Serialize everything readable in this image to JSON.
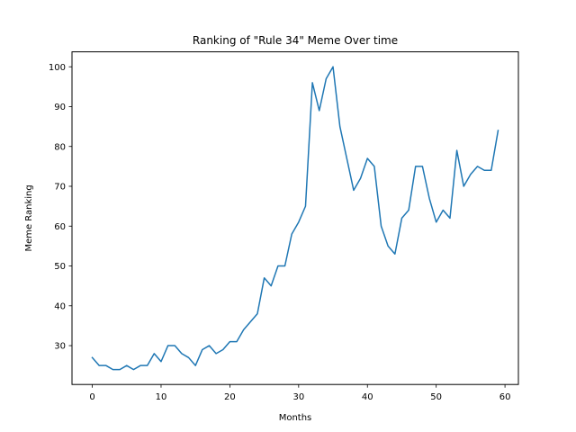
{
  "chart_data": {
    "type": "line",
    "title": "Ranking of \"Rule 34\" Meme Over time",
    "xlabel": "Months",
    "ylabel": "Meme Ranking",
    "xlim": [
      -2.95,
      61.95
    ],
    "ylim": [
      20.25,
      103.75
    ],
    "xticks": [
      0,
      10,
      20,
      30,
      40,
      50,
      60
    ],
    "yticks": [
      30,
      40,
      50,
      60,
      70,
      80,
      90,
      100
    ],
    "grid": false,
    "legend": "none",
    "line_color": "#1f77b4",
    "series": [
      {
        "x": [
          0,
          1,
          2,
          3,
          4,
          5,
          6,
          7,
          8,
          9,
          10,
          11,
          12,
          13,
          14,
          15,
          16,
          17,
          18,
          19,
          20,
          21,
          22,
          23,
          24,
          25,
          26,
          27,
          28,
          29,
          30,
          31,
          32,
          33,
          34,
          35,
          36,
          37,
          38,
          39,
          40,
          41,
          42,
          43,
          44,
          45,
          46,
          47,
          48,
          49,
          50,
          51,
          52,
          53,
          54,
          55,
          56,
          57,
          58,
          59
        ],
        "values": [
          27,
          25,
          25,
          24,
          24,
          25,
          24,
          25,
          25,
          28,
          26,
          30,
          30,
          28,
          27,
          25,
          29,
          30,
          28,
          29,
          31,
          31,
          34,
          36,
          38,
          47,
          45,
          50,
          50,
          58,
          61,
          65,
          96,
          89,
          97,
          100,
          85,
          77,
          69,
          72,
          77,
          75,
          60,
          55,
          53,
          62,
          64,
          75,
          75,
          67,
          61,
          64,
          62,
          79,
          70,
          73,
          75,
          74,
          74,
          84
        ]
      }
    ]
  }
}
